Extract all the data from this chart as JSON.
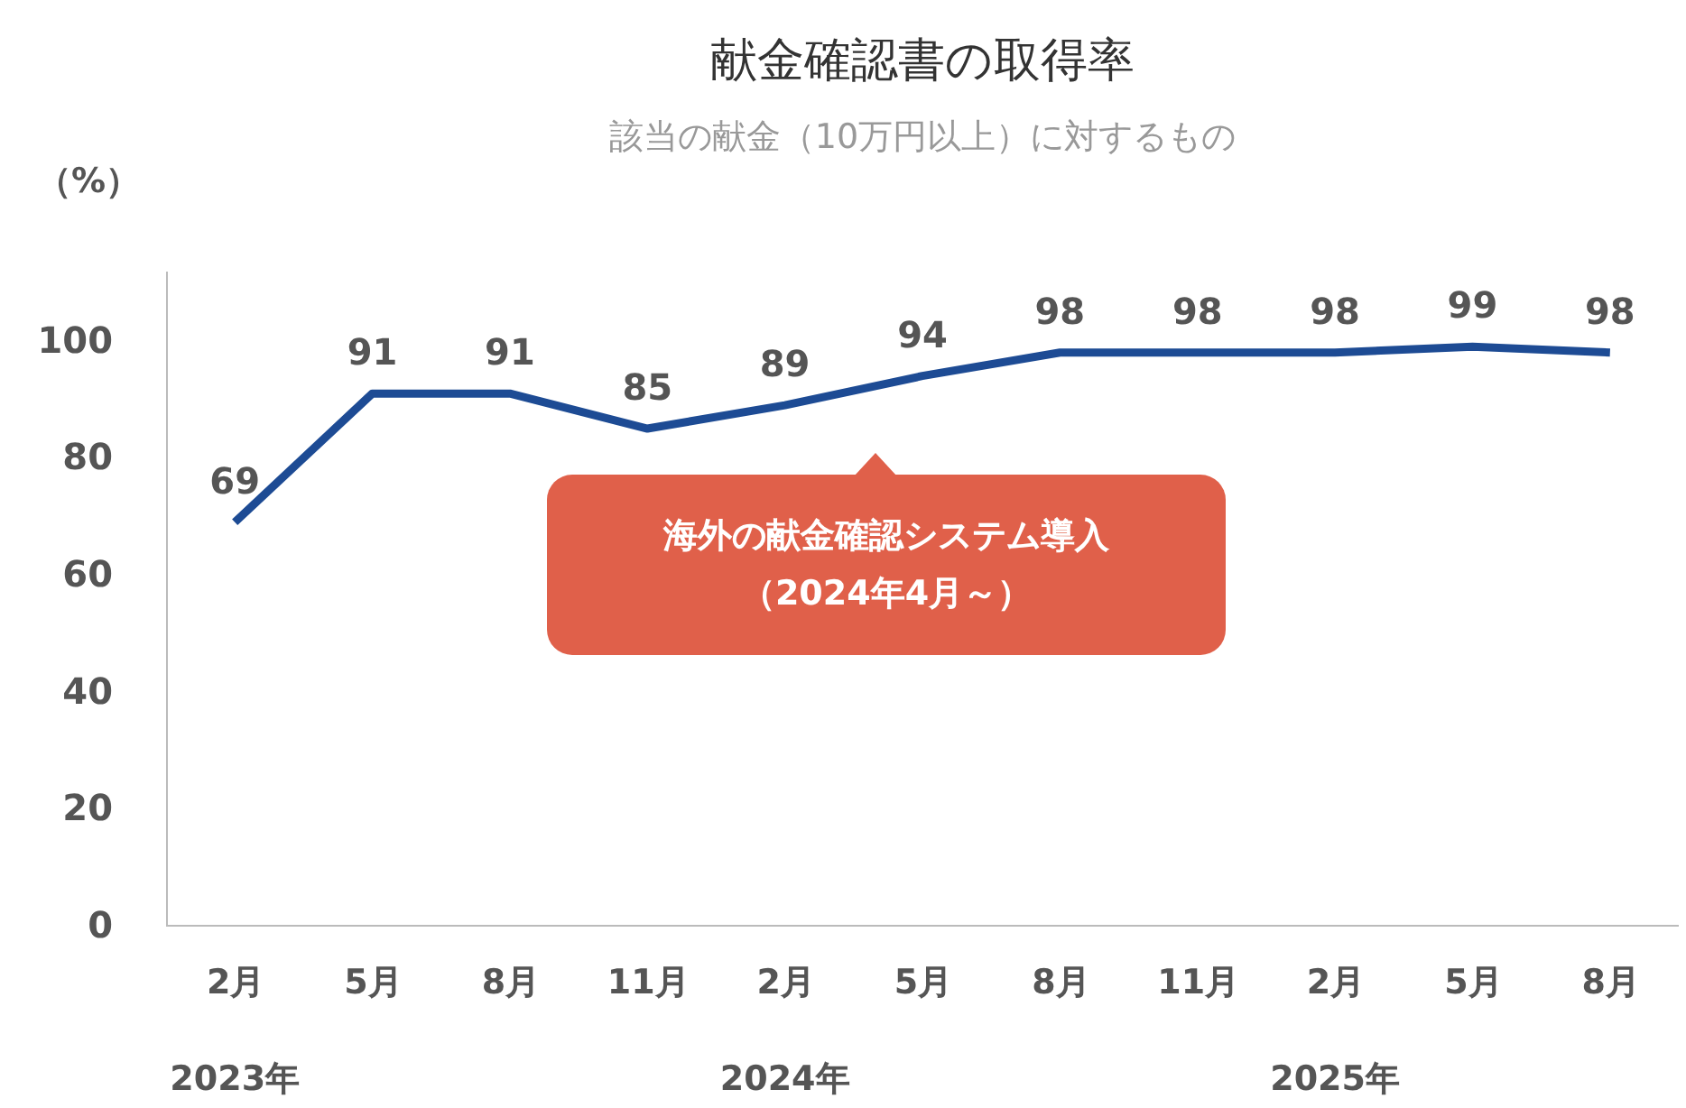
{
  "chart_data": {
    "type": "line",
    "title": "献金確認書の取得率",
    "subtitle": "該当の献金（10万円以上）に対するもの",
    "ylabel": "（%）",
    "categories": [
      "2月",
      "5月",
      "8月",
      "11月",
      "2月",
      "5月",
      "8月",
      "11月",
      "2月",
      "5月",
      "8月"
    ],
    "series": [
      {
        "color": "#1d4b94",
        "values": [
          69,
          91,
          91,
          85,
          89,
          94,
          98,
          98,
          98,
          99,
          98
        ]
      }
    ],
    "ylim": [
      0,
      112
    ],
    "yticks": [
      0,
      20,
      40,
      60,
      80,
      100
    ],
    "grid": false,
    "data_labels": true,
    "marker": "none",
    "line_style": "solid",
    "annotations": [
      "2023年",
      "2024年",
      "2025年",
      "海外の献金確認システム導入（2024年4月～）"
    ]
  }
}
